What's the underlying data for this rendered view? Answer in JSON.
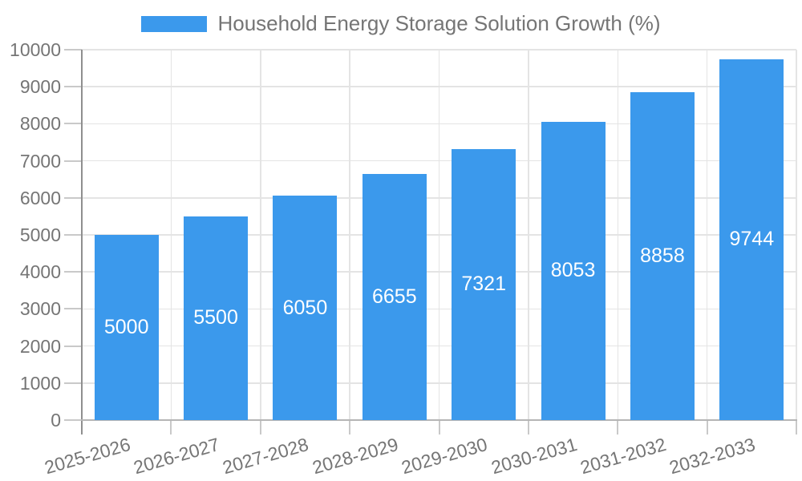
{
  "chart_data": {
    "type": "bar",
    "title": "Household Energy Storage Solution Growth (%)",
    "legend": {
      "position": "top-center",
      "entries": [
        "Household Energy Storage Solution Growth (%)"
      ]
    },
    "categories": [
      "2025-2026",
      "2026-2027",
      "2027-2028",
      "2028-2029",
      "2029-2030",
      "2030-2031",
      "2031-2032",
      "2032-2033"
    ],
    "series": [
      {
        "name": "Household Energy Storage Solution Growth (%)",
        "values": [
          5000,
          5500,
          6050,
          6655,
          7321,
          8053,
          8858,
          9744
        ]
      }
    ],
    "xlabel": "",
    "ylabel": "",
    "ylim": [
      0,
      10000
    ],
    "yticks": [
      0,
      1000,
      2000,
      3000,
      4000,
      5000,
      6000,
      7000,
      8000,
      9000,
      10000
    ],
    "grid": true,
    "value_labels_inside_bars": true,
    "x_label_rotation_deg": -16,
    "colors": {
      "bar": "#3B99EC",
      "bar_value_label": "#FFFFFF",
      "axis_text": "#757575",
      "gridline": "#E4E4E4",
      "y_axis_line": "#8F8F8F",
      "x_axis_line": "#B5B5B5",
      "tick": "#C9C9C9",
      "background": "#FFFFFF"
    }
  }
}
